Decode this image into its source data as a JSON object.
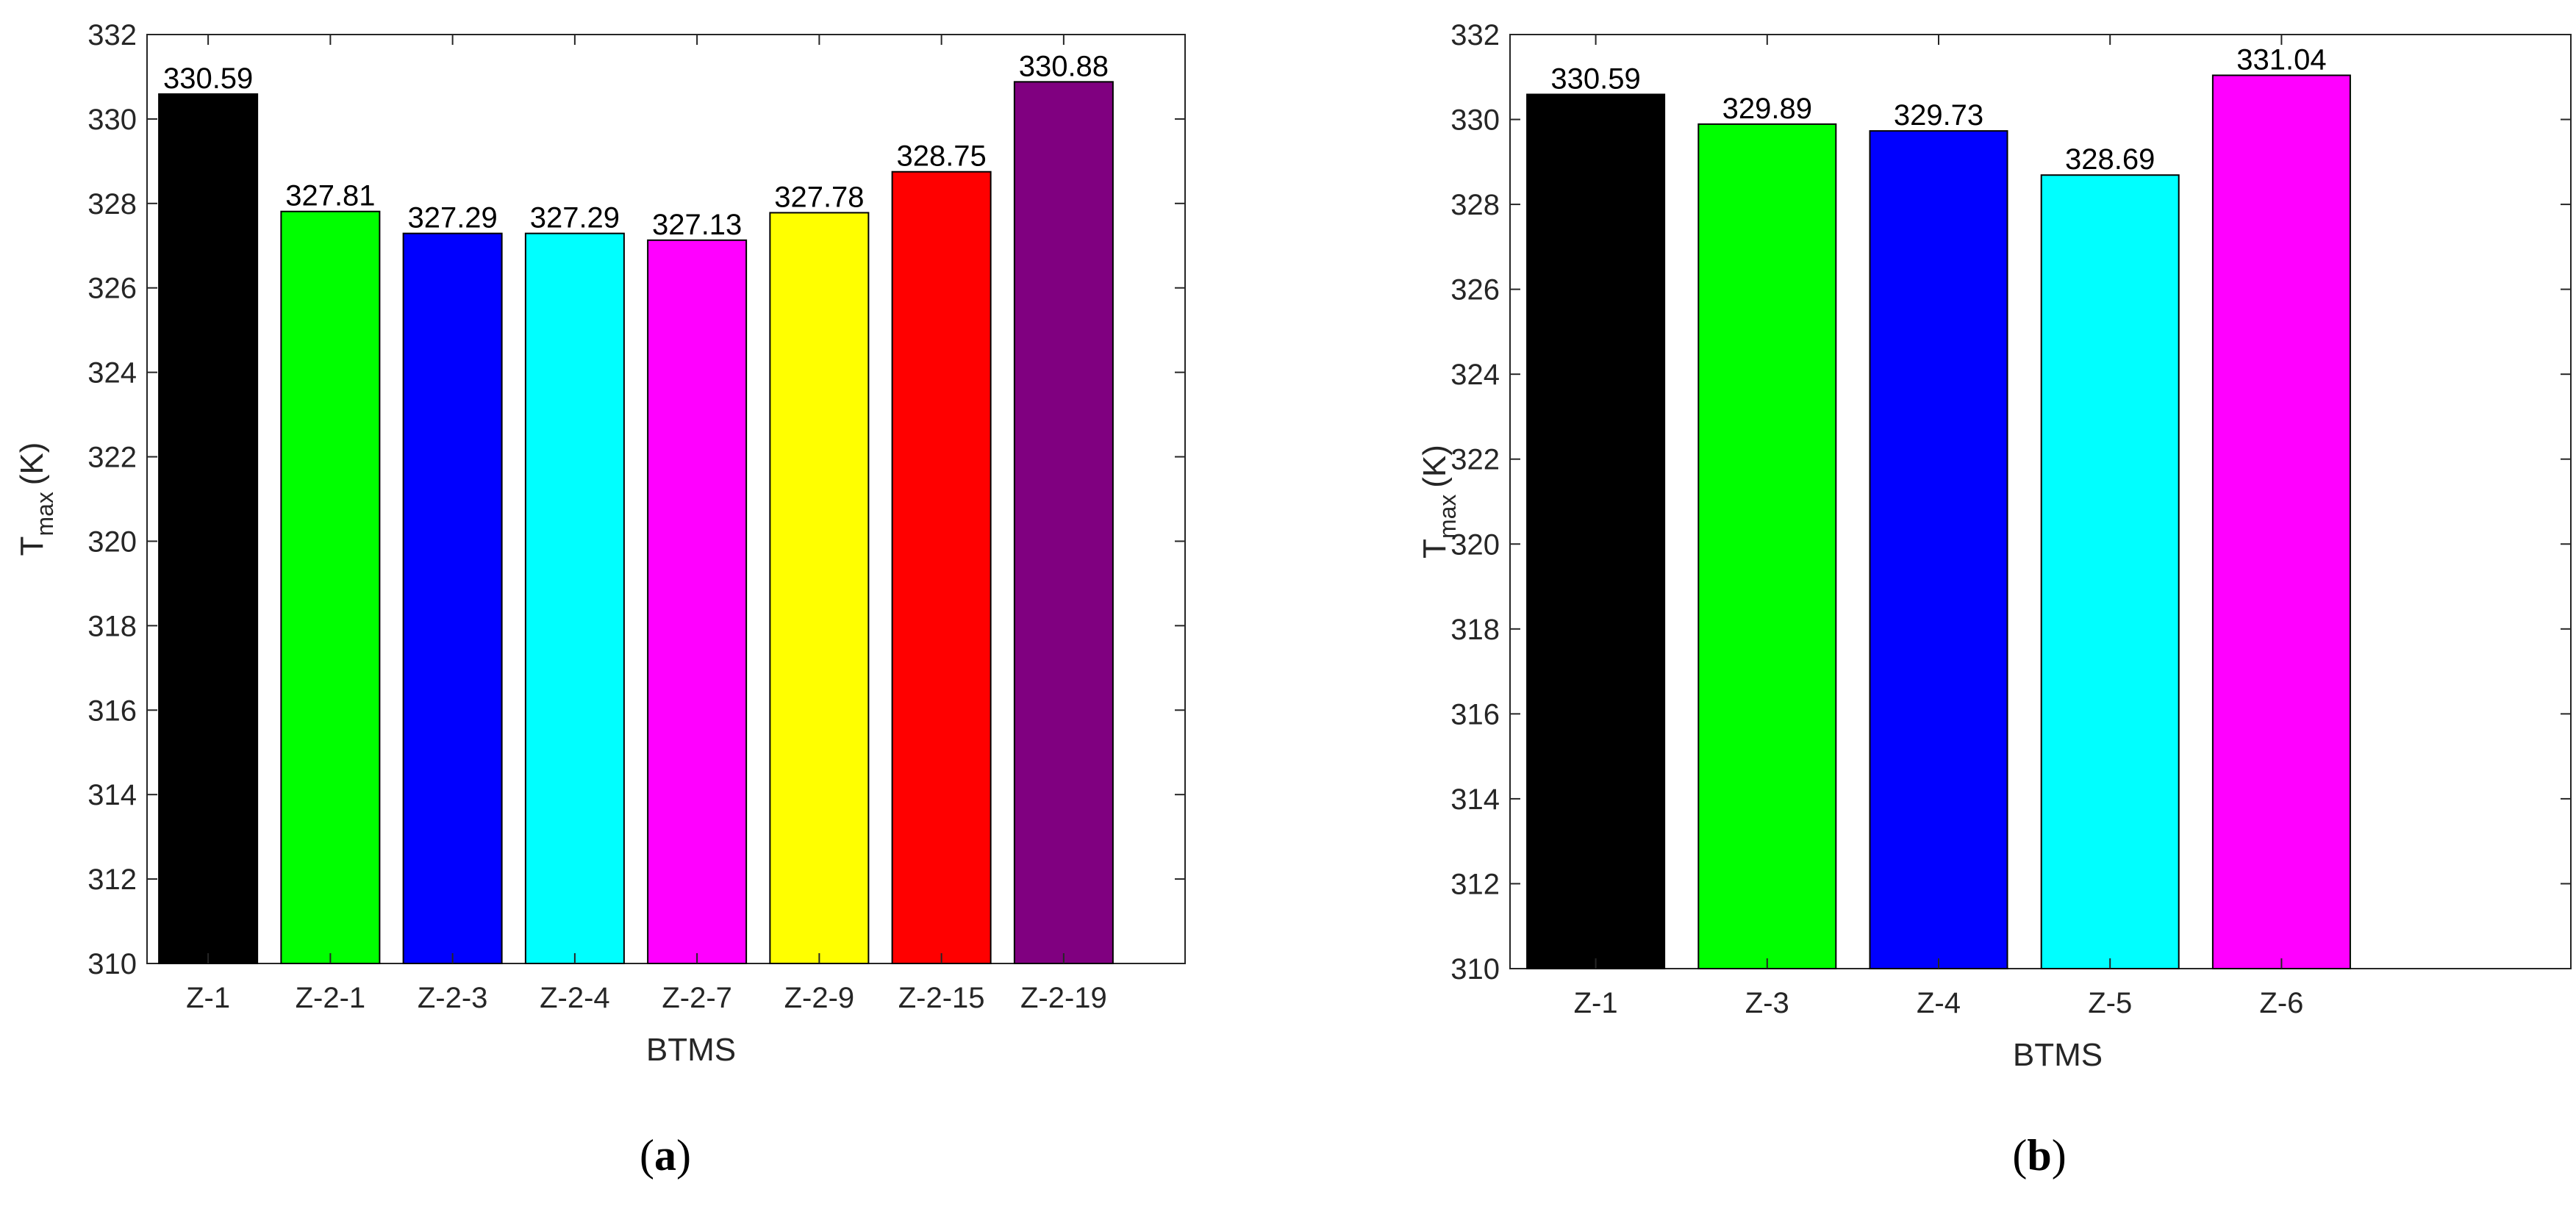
{
  "chart_data": [
    {
      "type": "bar",
      "panel_label": "a",
      "categories": [
        "Z-1",
        "Z-2-1",
        "Z-2-3",
        "Z-2-4",
        "Z-2-7",
        "Z-2-9",
        "Z-2-15",
        "Z-2-19"
      ],
      "values": [
        330.59,
        327.81,
        327.29,
        327.29,
        327.13,
        327.78,
        328.75,
        330.88
      ],
      "value_labels": [
        "330.59",
        "327.81",
        "327.29",
        "327.29",
        "327.13",
        "327.78",
        "328.75",
        "330.88"
      ],
      "colors": [
        "#000000",
        "#00ff00",
        "#0000ff",
        "#00ffff",
        "#ff00ff",
        "#ffff00",
        "#ff0000",
        "#800080"
      ],
      "xlabel": "BTMS",
      "ylabel_main": "T",
      "ylabel_sub": "max",
      "ylabel_unit": "(K)",
      "ylim": [
        310,
        332
      ],
      "yticks": [
        310,
        312,
        314,
        316,
        318,
        320,
        322,
        324,
        326,
        328,
        330,
        332
      ],
      "grid": false,
      "legend": "none"
    },
    {
      "type": "bar",
      "panel_label": "b",
      "categories": [
        "Z-1",
        "Z-3",
        "Z-4",
        "Z-5",
        "Z-6"
      ],
      "values": [
        330.59,
        329.89,
        329.73,
        328.69,
        331.04
      ],
      "value_labels": [
        "330.59",
        "329.89",
        "329.73",
        "328.69",
        "331.04"
      ],
      "colors": [
        "#000000",
        "#00ff00",
        "#0000ff",
        "#00ffff",
        "#ff00ff"
      ],
      "xlabel": "BTMS",
      "ylabel_main": "T",
      "ylabel_sub": "max",
      "ylabel_unit": "(K)",
      "ylim": [
        310,
        332
      ],
      "yticks": [
        310,
        312,
        314,
        316,
        318,
        320,
        322,
        324,
        326,
        328,
        330,
        332
      ],
      "grid": false,
      "legend": "none"
    }
  ]
}
